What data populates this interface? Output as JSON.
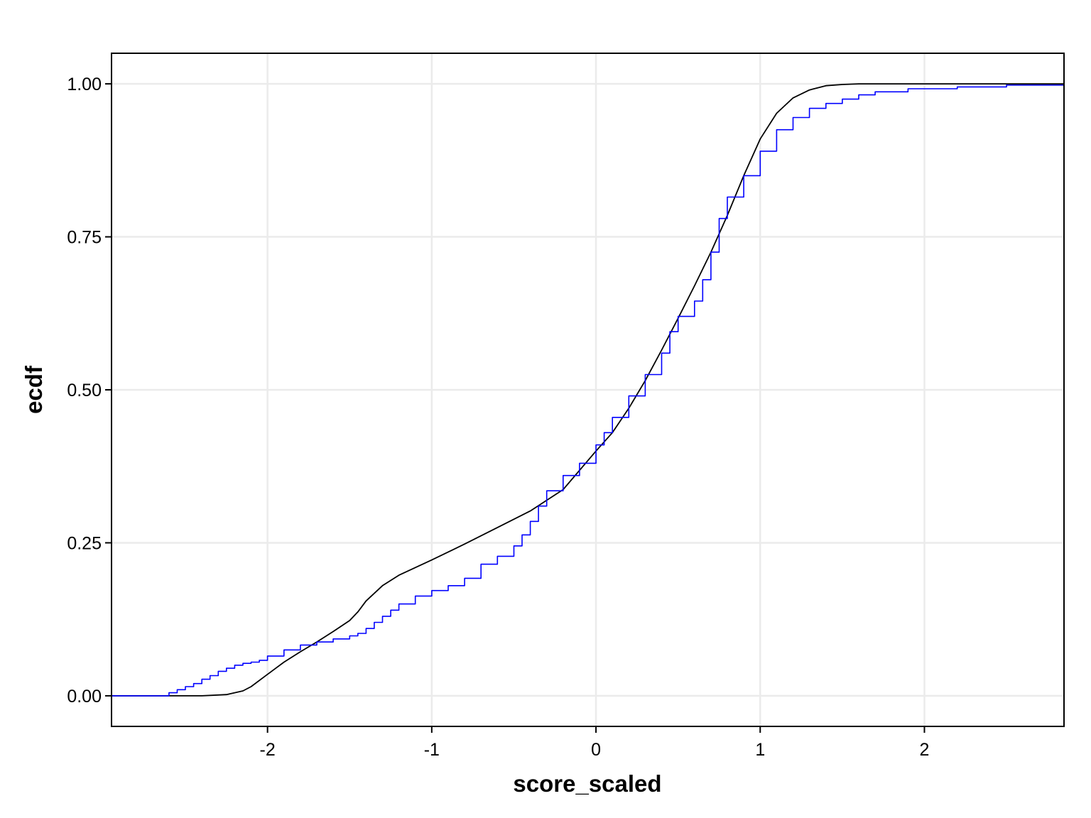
{
  "chart_data": {
    "type": "line",
    "title": "",
    "xlabel": "score_scaled",
    "ylabel": "ecdf",
    "xlim": [
      -2.95,
      2.85
    ],
    "ylim": [
      -0.05,
      1.05
    ],
    "grid": true,
    "legend": "none",
    "x_ticks": [
      "-2",
      "-1",
      "0",
      "1",
      "2"
    ],
    "x_tick_values": [
      -2,
      -1,
      0,
      1,
      2
    ],
    "y_ticks": [
      "0.00",
      "0.25",
      "0.50",
      "0.75",
      "1.00"
    ],
    "y_tick_values": [
      0,
      0.25,
      0.5,
      0.75,
      1.0
    ],
    "series": [
      {
        "color": "#000000",
        "step": false,
        "x": [
          -2.95,
          -2.6,
          -2.4,
          -2.25,
          -2.15,
          -2.1,
          -2.0,
          -1.9,
          -1.8,
          -1.7,
          -1.6,
          -1.5,
          -1.45,
          -1.4,
          -1.3,
          -1.2,
          -1.0,
          -0.8,
          -0.6,
          -0.4,
          -0.2,
          0.0,
          0.1,
          0.2,
          0.3,
          0.4,
          0.5,
          0.6,
          0.7,
          0.8,
          0.9,
          1.0,
          1.1,
          1.2,
          1.3,
          1.4,
          1.5,
          1.6,
          1.7,
          2.0,
          2.5,
          2.85
        ],
        "y": [
          0.0,
          0.0,
          0.0,
          0.002,
          0.008,
          0.015,
          0.035,
          0.055,
          0.072,
          0.088,
          0.105,
          0.123,
          0.137,
          0.155,
          0.18,
          0.197,
          0.222,
          0.248,
          0.275,
          0.302,
          0.337,
          0.4,
          0.43,
          0.47,
          0.515,
          0.565,
          0.617,
          0.67,
          0.725,
          0.785,
          0.85,
          0.91,
          0.952,
          0.977,
          0.99,
          0.997,
          0.999,
          1.0,
          1.0,
          1.0,
          1.0,
          1.0
        ]
      },
      {
        "color": "#0000ff",
        "step": true,
        "x": [
          -2.95,
          -2.65,
          -2.6,
          -2.55,
          -2.5,
          -2.45,
          -2.4,
          -2.35,
          -2.3,
          -2.25,
          -2.2,
          -2.15,
          -2.1,
          -2.05,
          -2.0,
          -1.9,
          -1.8,
          -1.7,
          -1.6,
          -1.5,
          -1.45,
          -1.4,
          -1.35,
          -1.3,
          -1.25,
          -1.2,
          -1.1,
          -1.0,
          -0.9,
          -0.8,
          -0.7,
          -0.6,
          -0.5,
          -0.45,
          -0.4,
          -0.35,
          -0.3,
          -0.2,
          -0.1,
          0.0,
          0.05,
          0.1,
          0.2,
          0.3,
          0.4,
          0.45,
          0.5,
          0.6,
          0.65,
          0.7,
          0.75,
          0.8,
          0.9,
          1.0,
          1.1,
          1.2,
          1.3,
          1.4,
          1.5,
          1.6,
          1.7,
          1.9,
          2.2,
          2.5,
          2.85
        ],
        "y": [
          0.0,
          0.0,
          0.005,
          0.01,
          0.015,
          0.02,
          0.027,
          0.033,
          0.04,
          0.045,
          0.05,
          0.053,
          0.055,
          0.058,
          0.065,
          0.075,
          0.083,
          0.088,
          0.093,
          0.098,
          0.102,
          0.11,
          0.12,
          0.13,
          0.14,
          0.15,
          0.163,
          0.172,
          0.18,
          0.192,
          0.215,
          0.228,
          0.245,
          0.263,
          0.285,
          0.31,
          0.335,
          0.36,
          0.38,
          0.41,
          0.43,
          0.455,
          0.49,
          0.525,
          0.56,
          0.595,
          0.62,
          0.645,
          0.68,
          0.725,
          0.78,
          0.815,
          0.85,
          0.89,
          0.925,
          0.945,
          0.96,
          0.968,
          0.975,
          0.982,
          0.987,
          0.992,
          0.995,
          0.998,
          1.0
        ]
      }
    ]
  }
}
